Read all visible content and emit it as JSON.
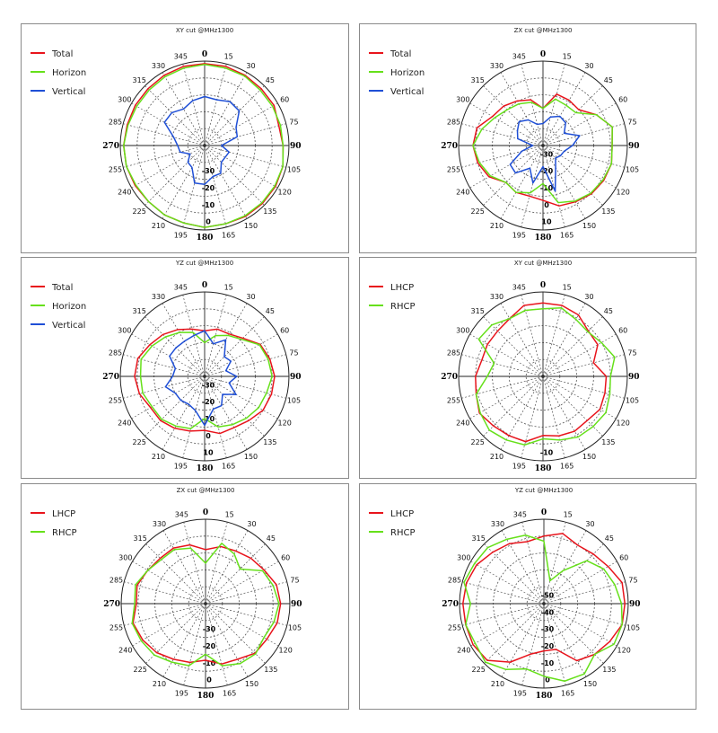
{
  "chart_data": [
    {
      "type": "polar-line",
      "title": "XY cut @MHz1300",
      "angle_ticks": [
        "0",
        "15",
        "30",
        "45",
        "60",
        "75",
        "90",
        "105",
        "120",
        "135",
        "150",
        "165",
        "180",
        "195",
        "210",
        "225",
        "240",
        "255",
        "270",
        "285",
        "300",
        "315",
        "330",
        "345"
      ],
      "radial_labels": [
        "-30",
        "-20",
        "-10",
        "0"
      ],
      "legend": [
        "Total",
        "Horizon",
        "Vertical"
      ],
      "series": [
        {
          "name": "Total",
          "color": "#e8141c",
          "values": [
            0.97,
            0.97,
            0.96,
            0.95,
            0.95,
            0.91,
            0.93,
            0.96,
            0.97,
            0.97,
            0.97,
            0.96,
            0.97,
            0.95,
            0.95,
            0.94,
            0.95,
            0.96,
            0.96,
            0.95,
            0.95,
            0.95,
            0.96,
            0.97
          ]
        },
        {
          "name": "Horizon",
          "color": "#66e01a",
          "values": [
            0.96,
            0.95,
            0.95,
            0.93,
            0.93,
            0.93,
            0.93,
            0.96,
            0.96,
            0.96,
            0.96,
            0.96,
            0.97,
            0.95,
            0.95,
            0.94,
            0.94,
            0.96,
            0.96,
            0.94,
            0.93,
            0.93,
            0.94,
            0.95
          ]
        },
        {
          "name": "Vertical",
          "color": "#1f4fd6",
          "values": [
            0.58,
            0.56,
            0.6,
            0.58,
            0.43,
            0.4,
            0.2,
            0.3,
            0.28,
            0.28,
            0.38,
            0.38,
            0.46,
            0.46,
            0.3,
            0.28,
            0.2,
            0.3,
            0.32,
            0.38,
            0.55,
            0.55,
            0.5,
            0.55
          ]
        }
      ]
    },
    {
      "type": "polar-line",
      "title": "ZX cut @MHz1300",
      "angle_ticks": [
        "0",
        "15",
        "30",
        "45",
        "60",
        "75",
        "90",
        "105",
        "120",
        "135",
        "150",
        "165",
        "180",
        "195",
        "210",
        "225",
        "240",
        "255",
        "270",
        "285",
        "300",
        "315",
        "330",
        "345"
      ],
      "radial_labels": [
        "-30",
        "-20",
        "-10",
        "0",
        "10"
      ],
      "legend": [
        "Total",
        "Horizon",
        "Vertical"
      ],
      "series": [
        {
          "name": "Total",
          "color": "#e8141c",
          "values": [
            0.44,
            0.63,
            0.62,
            0.6,
            0.73,
            0.85,
            0.82,
            0.84,
            0.83,
            0.81,
            0.77,
            0.74,
            0.65,
            0.62,
            0.64,
            0.62,
            0.74,
            0.8,
            0.83,
            0.81,
            0.69,
            0.66,
            0.61,
            0.56
          ]
        },
        {
          "name": "Horizon",
          "color": "#66e01a",
          "values": [
            0.44,
            0.57,
            0.55,
            0.55,
            0.73,
            0.85,
            0.82,
            0.84,
            0.82,
            0.8,
            0.76,
            0.7,
            0.45,
            0.58,
            0.64,
            0.62,
            0.72,
            0.78,
            0.83,
            0.75,
            0.66,
            0.6,
            0.57,
            0.53
          ]
        },
        {
          "name": "Vertical",
          "color": "#1f4fd6",
          "values": [
            0.26,
            0.35,
            0.4,
            0.38,
            0.29,
            0.45,
            0.35,
            0.26,
            0.24,
            0.21,
            0.3,
            0.56,
            0.25,
            0.46,
            0.31,
            0.46,
            0.45,
            0.26,
            0.12,
            0.31,
            0.35,
            0.4,
            0.35,
            0.26
          ]
        }
      ]
    },
    {
      "type": "polar-line",
      "title": "YZ cut @MHz1300",
      "angle_ticks": [
        "0",
        "15",
        "30",
        "45",
        "60",
        "75",
        "90",
        "105",
        "120",
        "135",
        "150",
        "165",
        "180",
        "195",
        "210",
        "225",
        "240",
        "255",
        "270",
        "285",
        "300",
        "315",
        "330",
        "345"
      ],
      "radial_labels": [
        "-30",
        "-20",
        "-10",
        "0",
        "10"
      ],
      "legend": [
        "Total",
        "Horizon",
        "Vertical"
      ],
      "series": [
        {
          "name": "Total",
          "color": "#e8141c",
          "values": [
            0.54,
            0.58,
            0.58,
            0.64,
            0.76,
            0.8,
            0.83,
            0.82,
            0.8,
            0.74,
            0.7,
            0.7,
            0.64,
            0.67,
            0.71,
            0.74,
            0.74,
            0.8,
            0.83,
            0.82,
            0.75,
            0.7,
            0.64,
            0.58
          ]
        },
        {
          "name": "Horizon",
          "color": "#66e01a",
          "values": [
            0.4,
            0.5,
            0.56,
            0.62,
            0.75,
            0.78,
            0.8,
            0.76,
            0.74,
            0.7,
            0.66,
            0.62,
            0.5,
            0.64,
            0.68,
            0.72,
            0.72,
            0.76,
            0.76,
            0.78,
            0.72,
            0.66,
            0.6,
            0.54
          ]
        },
        {
          "name": "Vertical",
          "color": "#1f4fd6",
          "values": [
            0.54,
            0.4,
            0.5,
            0.33,
            0.36,
            0.26,
            0.38,
            0.3,
            0.43,
            0.3,
            0.4,
            0.4,
            0.58,
            0.42,
            0.38,
            0.4,
            0.4,
            0.48,
            0.38,
            0.36,
            0.48,
            0.48,
            0.48,
            0.5
          ]
        }
      ]
    },
    {
      "type": "polar-line",
      "title": "XY cut @MHz1300",
      "angle_ticks": [
        "0",
        "15",
        "30",
        "45",
        "60",
        "75",
        "90",
        "105",
        "120",
        "135",
        "150",
        "165",
        "180",
        "195",
        "210",
        "225",
        "240",
        "255",
        "270",
        "285",
        "300",
        "315",
        "330",
        "345"
      ],
      "radial_labels": [
        "-10"
      ],
      "legend": [
        "LHCP",
        "RHCP"
      ],
      "series": [
        {
          "name": "LHCP",
          "color": "#e8141c",
          "values": [
            0.87,
            0.87,
            0.84,
            0.76,
            0.75,
            0.62,
            0.75,
            0.76,
            0.78,
            0.74,
            0.75,
            0.73,
            0.7,
            0.8,
            0.81,
            0.83,
            0.87,
            0.82,
            0.8,
            0.75,
            0.76,
            0.76,
            0.79,
            0.87
          ]
        },
        {
          "name": "RHCP",
          "color": "#66e01a",
          "values": [
            0.8,
            0.84,
            0.78,
            0.75,
            0.8,
            0.88,
            0.8,
            0.82,
            0.86,
            0.84,
            0.83,
            0.78,
            0.74,
            0.84,
            0.87,
            0.9,
            0.86,
            0.82,
            0.66,
            0.6,
            0.88,
            0.86,
            0.79,
            0.81
          ]
        }
      ]
    },
    {
      "type": "polar-line",
      "title": "ZX cut @MHz1300",
      "angle_ticks": [
        "0",
        "15",
        "30",
        "45",
        "60",
        "75",
        "90",
        "105",
        "120",
        "135",
        "150",
        "165",
        "180",
        "195",
        "210",
        "225",
        "240",
        "255",
        "270",
        "285",
        "300",
        "315",
        "330",
        "345"
      ],
      "radial_labels": [
        "-30",
        "-20",
        "-10",
        "0"
      ],
      "legend": [
        "LHCP",
        "RHCP"
      ],
      "series": [
        {
          "name": "LHCP",
          "color": "#e8141c",
          "values": [
            0.64,
            0.7,
            0.72,
            0.76,
            0.8,
            0.87,
            0.89,
            0.88,
            0.84,
            0.83,
            0.76,
            0.74,
            0.67,
            0.72,
            0.76,
            0.82,
            0.86,
            0.89,
            0.82,
            0.84,
            0.79,
            0.76,
            0.76,
            0.72
          ]
        },
        {
          "name": "RHCP",
          "color": "#66e01a",
          "values": [
            0.48,
            0.74,
            0.68,
            0.58,
            0.78,
            0.83,
            0.87,
            0.84,
            0.8,
            0.84,
            0.82,
            0.76,
            0.6,
            0.76,
            0.8,
            0.86,
            0.88,
            0.9,
            0.84,
            0.86,
            0.79,
            0.74,
            0.74,
            0.68
          ]
        }
      ]
    },
    {
      "type": "polar-line",
      "title": "YZ cut @MHz1300",
      "angle_ticks": [
        "0",
        "15",
        "30",
        "45",
        "60",
        "75",
        "90",
        "105",
        "120",
        "135",
        "150",
        "165",
        "180",
        "195",
        "210",
        "225",
        "240",
        "255",
        "270",
        "285",
        "300",
        "315",
        "330",
        "345"
      ],
      "radial_labels": [
        "-50",
        "-40",
        "-30",
        "-20",
        "-10",
        "0"
      ],
      "legend": [
        "LHCP",
        "RHCP"
      ],
      "series": [
        {
          "name": "LHCP",
          "color": "#e8141c",
          "values": [
            0.8,
            0.86,
            0.8,
            0.83,
            0.88,
            0.96,
            0.96,
            0.96,
            0.9,
            0.85,
            0.78,
            0.56,
            0.56,
            0.62,
            0.8,
            0.95,
            0.97,
            0.96,
            0.96,
            0.95,
            0.92,
            0.86,
            0.82,
            0.76
          ]
        },
        {
          "name": "RHCP",
          "color": "#66e01a",
          "values": [
            0.74,
            0.28,
            0.45,
            0.72,
            0.82,
            0.87,
            0.92,
            0.96,
            0.96,
            0.85,
            0.96,
            0.95,
            0.86,
            0.8,
            0.9,
            0.98,
            0.94,
            0.96,
            0.87,
            0.98,
            0.95,
            0.94,
            0.88,
            0.84
          ]
        }
      ]
    }
  ]
}
